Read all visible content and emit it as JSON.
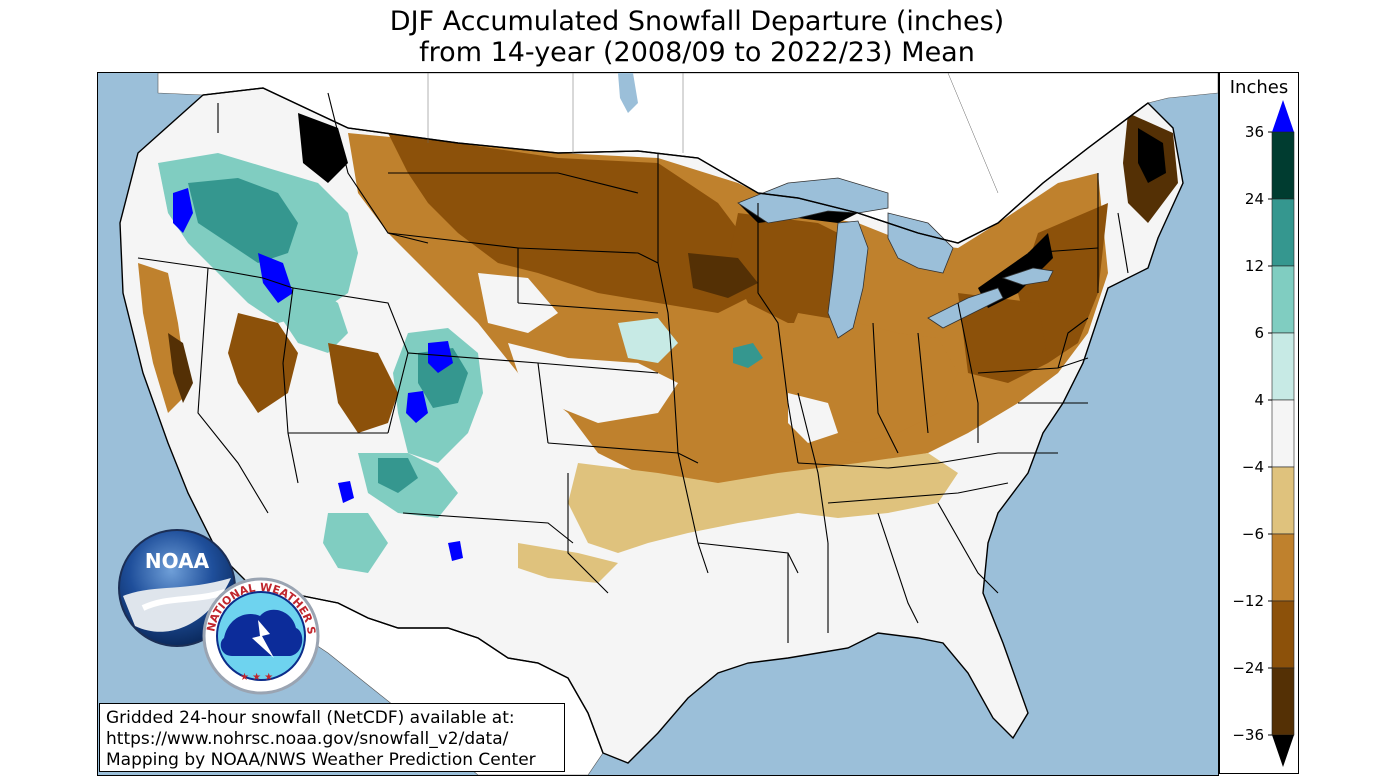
{
  "title": {
    "line1": "DJF Accumulated Snowfall Departure (inches)",
    "line2": "from 14-year (2008/09 to 2022/23) Mean"
  },
  "legend": {
    "title": "Inches",
    "ticks": [
      "36",
      "24",
      "12",
      "6",
      "4",
      "−4",
      "−6",
      "−12",
      "−24",
      "−36"
    ],
    "bins": [
      {
        "range": "24 to 36",
        "color": "#003c30"
      },
      {
        "range": "12 to 24",
        "color": "#35978f"
      },
      {
        "range": "6 to 12",
        "color": "#80cdc1"
      },
      {
        "range": "4 to 6",
        "color": "#c7eae5"
      },
      {
        "range": "-4 to 4",
        "color": "#f5f5f5"
      },
      {
        "range": "-6 to -4",
        "color": "#dfc27d"
      },
      {
        "range": "-12 to -6",
        "color": "#bf812d"
      },
      {
        "range": "-24 to -12",
        "color": "#8c510a"
      },
      {
        "range": "-36 to -24",
        "color": "#543005"
      }
    ],
    "over_color": "#0000ff",
    "under_color": "#000000"
  },
  "source_note": {
    "line1": "Gridded 24-hour snowfall (NetCDF) available at:",
    "line2": "https://www.nohrsc.noaa.gov/snowfall_v2/data/",
    "line3": "Mapping by NOAA/NWS Weather Prediction Center"
  },
  "logos": {
    "noaa_text": "NOAA",
    "nws_text": "NATIONAL WEATHER SERVICE"
  },
  "colors": {
    "water": "#9bbfd9",
    "land_outside": "#ffffff",
    "neutral": "#f5f5f5"
  }
}
